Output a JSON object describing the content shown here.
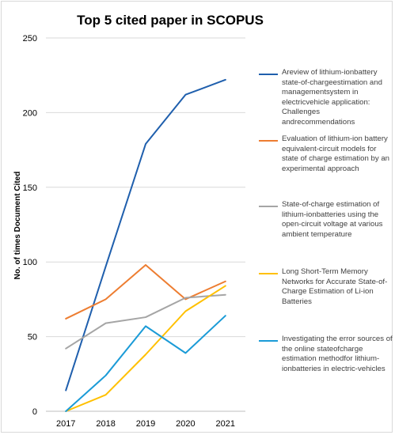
{
  "chart_data": {
    "type": "line",
    "title": "Top 5 cited paper in SCOPUS",
    "xlabel": "",
    "ylabel": "No. of  times Document Cited",
    "categories": [
      "2017",
      "2018",
      "2019",
      "2020",
      "2021"
    ],
    "ylim": [
      0,
      250
    ],
    "yticks": [
      0,
      50,
      100,
      150,
      200,
      250
    ],
    "grid": true,
    "legend_position": "right",
    "series": [
      {
        "name": "Areview of lithium-ionbattery state-of-chargeestimation and managementsystem in electricvehicle application: Challenges andrecommendations",
        "color": "#1F5FAD",
        "values": [
          14,
          97,
          179,
          212,
          222
        ]
      },
      {
        "name": "Evaluation of lithium-ion battery equivalent-circuit models for state of charge estimation by an experimental approach",
        "color": "#ED7D31",
        "values": [
          62,
          75,
          98,
          75,
          87
        ]
      },
      {
        "name": "State-of-charge estimation of lithium-ionbatteries using the open-circuit voltage at various ambient temperature",
        "color": "#A5A5A5",
        "values": [
          42,
          59,
          63,
          76,
          78
        ]
      },
      {
        "name": "Long Short-Term Memory Networks for Accurate State-of-Charge Estimation of Li-ion Batteries",
        "color": "#FFC000",
        "values": [
          0,
          11,
          38,
          67,
          84
        ]
      },
      {
        "name": "Investigating the error sources of the online stateofcharge estimation methodfor lithium-ionbatteries in electric-vehicles",
        "color": "#1B9BD7",
        "values": [
          0,
          24,
          57,
          39,
          64
        ]
      }
    ]
  }
}
